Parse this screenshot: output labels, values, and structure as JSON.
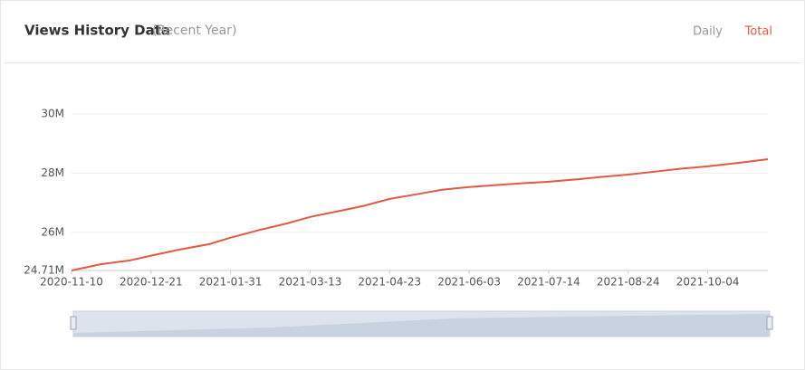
{
  "header": {
    "title": "Views History Data",
    "subtitle": "(Recent Year)",
    "tabs": [
      "Daily",
      "Total"
    ]
  },
  "chart_data": {
    "type": "line",
    "x": [
      "2020-11-10",
      "2020-11-25",
      "2020-12-10",
      "2020-12-21",
      "2021-01-05",
      "2021-01-20",
      "2021-01-31",
      "2021-02-15",
      "2021-03-01",
      "2021-03-13",
      "2021-03-28",
      "2021-04-10",
      "2021-04-23",
      "2021-05-08",
      "2021-05-20",
      "2021-06-03",
      "2021-06-20",
      "2021-07-01",
      "2021-07-14",
      "2021-07-30",
      "2021-08-10",
      "2021-08-24",
      "2021-09-08",
      "2021-09-20",
      "2021-10-04",
      "2021-10-20",
      "2021-11-04"
    ],
    "series": [
      {
        "name": "Total",
        "color": "#e05a44",
        "values": [
          24710000,
          24920000,
          25050000,
          25210000,
          25420000,
          25600000,
          25820000,
          26080000,
          26300000,
          26520000,
          26720000,
          26900000,
          27130000,
          27300000,
          27440000,
          27530000,
          27610000,
          27660000,
          27710000,
          27800000,
          27870000,
          27950000,
          28060000,
          28150000,
          28230000,
          28350000,
          28470000
        ]
      }
    ],
    "xlim": [
      "2020-11-10",
      "2021-11-04"
    ],
    "xticks": [
      "2020-11-10",
      "2020-12-21",
      "2021-01-31",
      "2021-03-13",
      "2021-04-23",
      "2021-06-03",
      "2021-07-14",
      "2021-08-24",
      "2021-10-04"
    ],
    "ylim": [
      24710000,
      30000000
    ],
    "yticks": [
      {
        "value": 24710000,
        "label": "24.71M"
      },
      {
        "value": 26000000,
        "label": "26M"
      },
      {
        "value": 28000000,
        "label": "28M"
      },
      {
        "value": 30000000,
        "label": "30M"
      }
    ],
    "grid": true
  }
}
